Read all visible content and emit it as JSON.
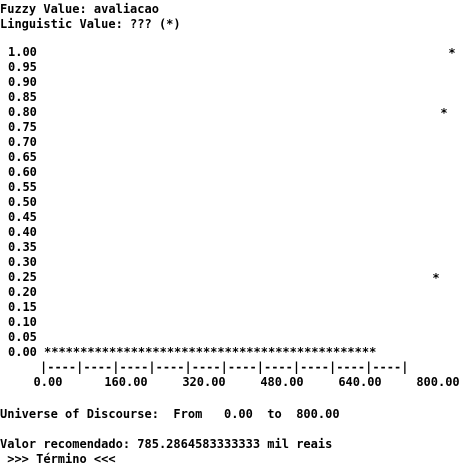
{
  "header": {
    "fuzzy_value_line": "Fuzzy Value: avaliacao",
    "linguistic_value_line": "Linguistic Value: ??? (*)"
  },
  "chart_data": {
    "type": "scatter",
    "marker": "*",
    "y_ticks": [
      "1.00",
      "0.95",
      "0.90",
      "0.85",
      "0.80",
      "0.75",
      "0.70",
      "0.65",
      "0.60",
      "0.55",
      "0.50",
      "0.45",
      "0.40",
      "0.35",
      "0.30",
      "0.25",
      "0.20",
      "0.15",
      "0.10",
      "0.05",
      "0.00"
    ],
    "x_axis_rule": "|----|----|----|----|----|----|----|----|----|----|",
    "x_ticks": [
      "0.00",
      "160.00",
      "320.00",
      "480.00",
      "640.00",
      "800.00"
    ],
    "baseline_marks": "**********************************************",
    "xlim": [
      0,
      800
    ],
    "ylim": [
      0,
      1
    ],
    "points": [
      {
        "x": 784,
        "y": 0.25
      },
      {
        "x": 800,
        "y": 0.8
      },
      {
        "x": 816,
        "y": 1.0
      }
    ]
  },
  "footer": {
    "universe_line": "Universe of Discourse:  From   0.00  to  800.00",
    "recommended_line": "Valor recomendado: 785.2864583333333 mil reais",
    "end_line": " >>> Término <<<"
  }
}
